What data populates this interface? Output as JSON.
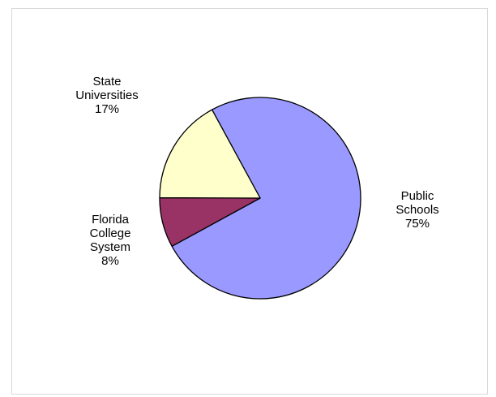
{
  "chart_data": {
    "type": "pie",
    "title": "",
    "slices": [
      {
        "label_lines": [
          "Public",
          "Schools"
        ],
        "value": 75,
        "value_label": "75%",
        "color": "#9999ff"
      },
      {
        "label_lines": [
          "Florida",
          "College",
          "System"
        ],
        "value": 8,
        "value_label": "8%",
        "color": "#993366"
      },
      {
        "label_lines": [
          "State",
          "Universities"
        ],
        "value": 17,
        "value_label": "17%",
        "color": "#ffffcc"
      }
    ],
    "legend": "none"
  }
}
